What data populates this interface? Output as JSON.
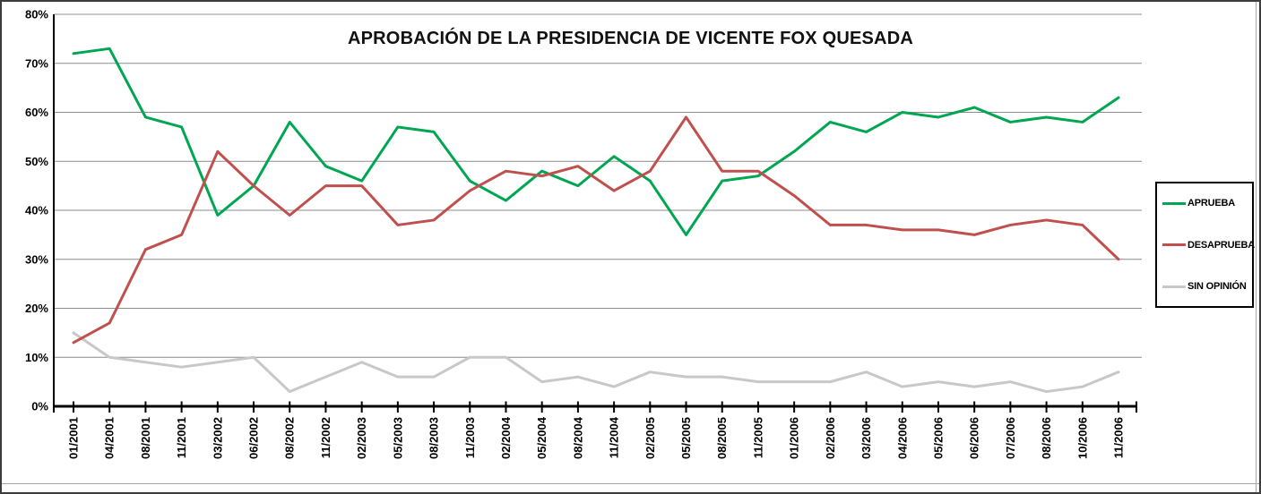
{
  "chart_data": {
    "type": "line",
    "title": "APROBACIÓN DE LA PRESIDENCIA DE VICENTE FOX QUESADA",
    "categories": [
      "01/2001",
      "04/2001",
      "08/2001",
      "11/2001",
      "03/2002",
      "06/2002",
      "08/2002",
      "11/2002",
      "02/2003",
      "05/2003",
      "08/2003",
      "11/2003",
      "02/2004",
      "05/2004",
      "08/2004",
      "11/2004",
      "02/2005",
      "05/2005",
      "08/2005",
      "11/2005",
      "01/2006",
      "02/2006",
      "03/2006",
      "04/2006",
      "05/2006",
      "06/2006",
      "07/2006",
      "08/2006",
      "10/2006",
      "11/2006"
    ],
    "series": [
      {
        "name": "APRUEBA",
        "color": "#00A651",
        "values": [
          72,
          73,
          59,
          57,
          39,
          45,
          58,
          49,
          46,
          57,
          56,
          46,
          42,
          48,
          45,
          51,
          46,
          35,
          46,
          47,
          52,
          58,
          56,
          60,
          59,
          61,
          58,
          59,
          58,
          63
        ]
      },
      {
        "name": "DESAPRUEBA",
        "color": "#C0504D",
        "values": [
          13,
          17,
          32,
          35,
          52,
          45,
          39,
          45,
          45,
          37,
          38,
          44,
          48,
          47,
          49,
          44,
          48,
          59,
          48,
          48,
          43,
          37,
          37,
          36,
          36,
          35,
          37,
          38,
          37,
          30
        ]
      },
      {
        "name": "SIN OPINIÓN",
        "color": "#C8C8C8",
        "values": [
          15,
          10,
          9,
          8,
          9,
          10,
          3,
          6,
          9,
          6,
          6,
          10,
          10,
          5,
          6,
          4,
          7,
          6,
          6,
          5,
          5,
          5,
          7,
          4,
          5,
          4,
          5,
          3,
          4,
          7
        ]
      }
    ],
    "xlabel": "",
    "ylabel": "",
    "ylim": [
      0,
      80
    ],
    "ytick_labels": [
      "0%",
      "10%",
      "20%",
      "30%",
      "40%",
      "50%",
      "60%",
      "70%",
      "80%"
    ],
    "grid": true,
    "legend_position": "right",
    "gridline_color": "#8c8c8c",
    "axis_color": "#000000"
  }
}
